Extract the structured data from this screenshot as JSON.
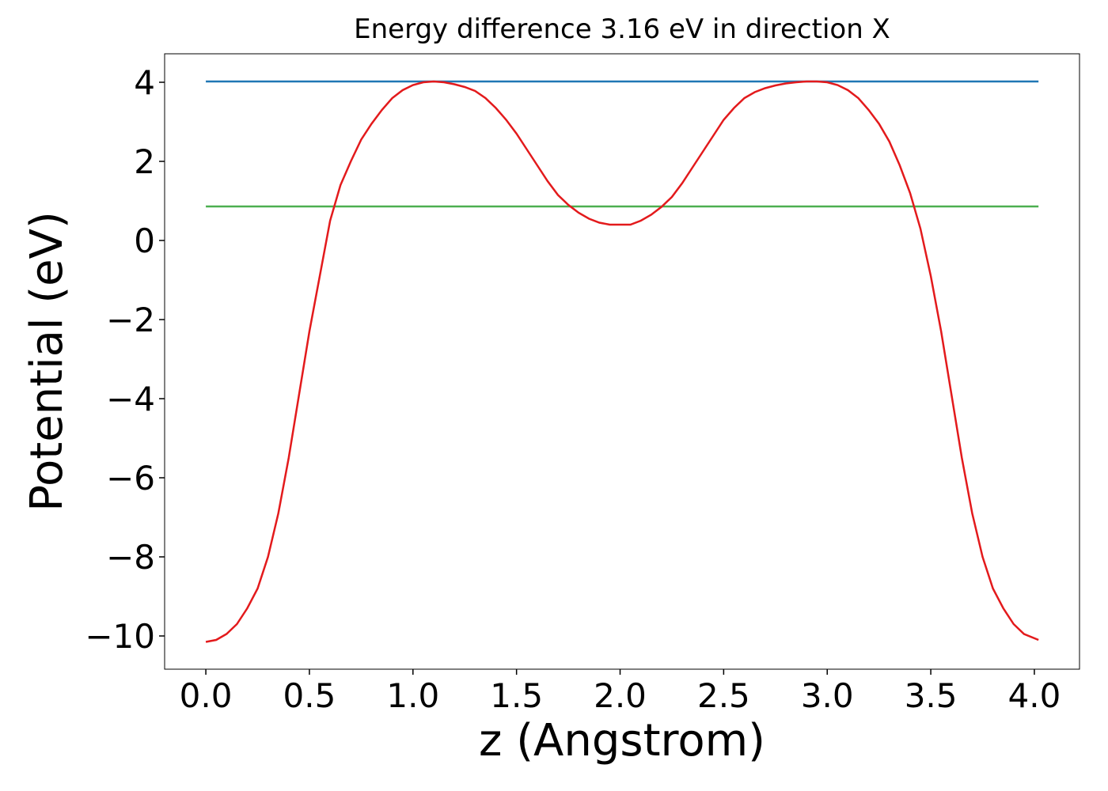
{
  "chart_data": {
    "type": "line",
    "title": "Energy difference 3.16 eV in direction X",
    "xlabel": "z (Angstrom)",
    "ylabel": "Potential (eV)",
    "xlim": [
      -0.199,
      4.218
    ],
    "ylim": [
      -10.84,
      4.72
    ],
    "xticks": [
      {
        "value": 0,
        "label": "0.0"
      },
      0.5,
      {
        "value": 1,
        "label": "1.0"
      },
      1.5,
      {
        "value": 2,
        "label": "2.0"
      },
      2.5,
      {
        "value": 3,
        "label": "3.0"
      },
      3.5,
      {
        "value": 4,
        "label": "4.0"
      }
    ],
    "yticks": [
      {
        "value": -10,
        "label": "−10"
      },
      {
        "value": -8,
        "label": "−8"
      },
      {
        "value": -6,
        "label": "−6"
      },
      {
        "value": -4,
        "label": "−4"
      },
      {
        "value": -2,
        "label": "−2"
      },
      0,
      2,
      4
    ],
    "series": [
      {
        "color": "#1f77b4",
        "x": [
          0,
          4.02
        ],
        "values": [
          4.02,
          4.02
        ]
      },
      {
        "color": "#4caf50",
        "x": [
          0,
          4.02
        ],
        "values": [
          0.86,
          0.86
        ]
      },
      {
        "color": "#e31a1c",
        "x": [
          0,
          0.05,
          0.1,
          0.15,
          0.2,
          0.25,
          0.3,
          0.35,
          0.4,
          0.45,
          0.5,
          0.55,
          0.6,
          0.65,
          0.7,
          0.75,
          0.8,
          0.85,
          0.9,
          0.95,
          1.0,
          1.05,
          1.1,
          1.15,
          1.2,
          1.25,
          1.3,
          1.35,
          1.4,
          1.45,
          1.5,
          1.55,
          1.6,
          1.65,
          1.7,
          1.75,
          1.8,
          1.85,
          1.9,
          1.95,
          2.0,
          2.05,
          2.1,
          2.15,
          2.2,
          2.25,
          2.3,
          2.35,
          2.4,
          2.45,
          2.5,
          2.55,
          2.6,
          2.65,
          2.7,
          2.75,
          2.8,
          2.85,
          2.9,
          2.95,
          3.0,
          3.05,
          3.1,
          3.15,
          3.2,
          3.25,
          3.3,
          3.35,
          3.4,
          3.45,
          3.5,
          3.55,
          3.6,
          3.65,
          3.7,
          3.75,
          3.8,
          3.85,
          3.9,
          3.95,
          4.02
        ],
        "values": [
          -10.15,
          -10.1,
          -9.95,
          -9.7,
          -9.3,
          -8.8,
          -8.0,
          -6.9,
          -5.5,
          -3.9,
          -2.3,
          -0.9,
          0.5,
          1.4,
          2.0,
          2.55,
          2.95,
          3.3,
          3.6,
          3.8,
          3.93,
          4.0,
          4.02,
          4.0,
          3.95,
          3.88,
          3.78,
          3.6,
          3.35,
          3.05,
          2.7,
          2.3,
          1.9,
          1.5,
          1.15,
          0.9,
          0.7,
          0.55,
          0.45,
          0.4,
          0.4,
          0.4,
          0.5,
          0.65,
          0.85,
          1.1,
          1.45,
          1.85,
          2.25,
          2.65,
          3.05,
          3.35,
          3.6,
          3.75,
          3.85,
          3.92,
          3.97,
          4.0,
          4.02,
          4.02,
          4.0,
          3.93,
          3.8,
          3.6,
          3.3,
          2.95,
          2.5,
          1.9,
          1.2,
          0.3,
          -0.9,
          -2.3,
          -3.9,
          -5.5,
          -6.9,
          -8.0,
          -8.8,
          -9.3,
          -9.7,
          -9.95,
          -10.1
        ]
      }
    ]
  }
}
